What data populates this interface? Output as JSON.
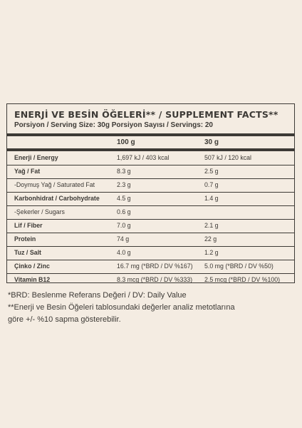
{
  "label": {
    "title": "ENERJİ VE BESİN ÖĞELERİ** / SUPPLEMENT FACTS**",
    "serving": "Porsiyon / Serving Size: 30g Porsiyon Sayısı / Servings: 20",
    "col_100": "100 g",
    "col_30": "30 g",
    "rows": [
      {
        "name": "Enerji / Energy",
        "v100": "1,697 kJ / 403 kcal",
        "v30": "507 kJ / 120 kcal",
        "bold": true
      },
      {
        "name": "Yağ / Fat",
        "v100": "8.3 g",
        "v30": "2.5 g",
        "bold": true
      },
      {
        "name": "-Doymuş Yağ / Saturated Fat",
        "v100": "2.3 g",
        "v30": "0.7 g",
        "bold": false
      },
      {
        "name": "Karbonhidrat / Carbohydrate",
        "v100": "4.5 g",
        "v30": "1.4 g",
        "bold": true
      },
      {
        "name": "-Şekerler / Sugars",
        "v100": "0.6 g",
        "v30": "",
        "bold": false
      },
      {
        "name": "Lif / Fiber",
        "v100": "7.0 g",
        "v30": "2.1 g",
        "bold": true
      },
      {
        "name": "Protein",
        "v100": "74 g",
        "v30": "22 g",
        "bold": true
      },
      {
        "name": "Tuz / Salt",
        "v100": "4.0 g",
        "v30": "1.2 g",
        "bold": true
      },
      {
        "name": "Çinko / Zinc",
        "v100": "16.7 mg (*BRD / DV %167)",
        "v30": "5.0 mg (*BRD / DV %50)",
        "bold": true
      },
      {
        "name": "Vitamin B12",
        "v100": "8.3 mcg (*BRD / DV %333)",
        "v30": "2.5 mcg (*BRD / DV %100)",
        "bold": true
      }
    ]
  },
  "notes": {
    "line1": "*BRD: Beslenme Referans Değeri / DV: Daily Value",
    "line2": "**Enerji ve Besin Öğeleri tablosundaki değerler analiz metotlarına",
    "line3": "göre +/- %10 sapma gösterebilir."
  }
}
